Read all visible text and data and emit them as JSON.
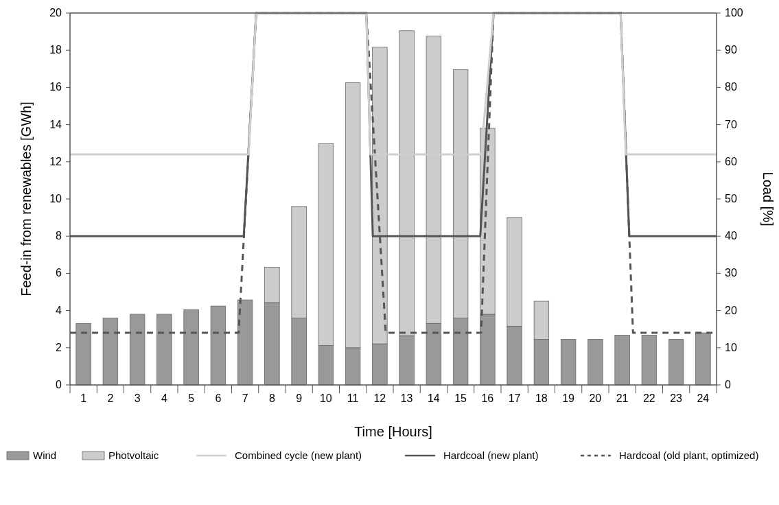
{
  "chart_data": {
    "type": "bar",
    "stacked": true,
    "xlabel": "Time [Hours]",
    "ylabel": "Feed-in from renewables [GWh]",
    "y2label": "Load [%]",
    "x": [
      1,
      2,
      3,
      4,
      5,
      6,
      7,
      8,
      9,
      10,
      11,
      12,
      13,
      14,
      15,
      16,
      17,
      18,
      19,
      20,
      21,
      22,
      23,
      24
    ],
    "xlim": [
      0.5,
      24.5
    ],
    "xticks": [
      {
        "value": 0.5,
        "label": null
      },
      {
        "value": 1,
        "label": "1"
      },
      {
        "value": 1.5,
        "label": null
      },
      {
        "value": 2,
        "label": "2"
      },
      {
        "value": 2.5,
        "label": null
      },
      {
        "value": 3,
        "label": "3"
      },
      {
        "value": 3.5,
        "label": null
      },
      {
        "value": 4,
        "label": "4"
      },
      {
        "value": 4.5,
        "label": null
      },
      {
        "value": 5,
        "label": "5"
      },
      {
        "value": 5.5,
        "label": null
      },
      {
        "value": 6,
        "label": "6"
      },
      {
        "value": 6.5,
        "label": null
      },
      {
        "value": 7,
        "label": "7"
      },
      {
        "value": 7.5,
        "label": null
      },
      {
        "value": 8,
        "label": "8"
      },
      {
        "value": 8.5,
        "label": null
      },
      {
        "value": 9,
        "label": "9"
      },
      {
        "value": 9.5,
        "label": null
      },
      {
        "value": 10,
        "label": "10"
      },
      {
        "value": 10.5,
        "label": null
      },
      {
        "value": 11,
        "label": "11"
      },
      {
        "value": 11.5,
        "label": null
      },
      {
        "value": 12,
        "label": "12"
      },
      {
        "value": 12.5,
        "label": null
      },
      {
        "value": 13,
        "label": "13"
      },
      {
        "value": 13.5,
        "label": null
      },
      {
        "value": 14,
        "label": "14"
      },
      {
        "value": 14.5,
        "label": null
      },
      {
        "value": 15,
        "label": "15"
      },
      {
        "value": 15.5,
        "label": null
      },
      {
        "value": 16,
        "label": "16"
      },
      {
        "value": 16.5,
        "label": null
      },
      {
        "value": 17,
        "label": "17"
      },
      {
        "value": 17.5,
        "label": null
      },
      {
        "value": 18,
        "label": "18"
      },
      {
        "value": 18.5,
        "label": null
      },
      {
        "value": 19,
        "label": "19"
      },
      {
        "value": 19.5,
        "label": null
      },
      {
        "value": 20,
        "label": "20"
      },
      {
        "value": 20.5,
        "label": null
      },
      {
        "value": 21,
        "label": "21"
      },
      {
        "value": 21.5,
        "label": null
      },
      {
        "value": 22,
        "label": "22"
      },
      {
        "value": 22.5,
        "label": null
      },
      {
        "value": 23,
        "label": "23"
      },
      {
        "value": 23.5,
        "label": null
      },
      {
        "value": 24,
        "label": "24"
      },
      {
        "value": 24.5,
        "label": null
      }
    ],
    "ylim": [
      0,
      20
    ],
    "yticks": [
      0,
      2,
      4,
      6,
      8,
      10,
      12,
      14,
      16,
      18,
      20
    ],
    "y2lim": [
      0,
      100
    ],
    "y2ticks": [
      0,
      10,
      20,
      30,
      40,
      50,
      60,
      70,
      80,
      90,
      100
    ],
    "legend": "bottom",
    "series": [
      {
        "name": "Wind",
        "color": "#999999",
        "values": [
          3.3,
          3.6,
          3.8,
          3.8,
          4.05,
          4.24,
          4.57,
          4.43,
          3.6,
          2.12,
          2.0,
          2.21,
          2.65,
          3.31,
          3.6,
          3.8,
          3.16,
          2.45,
          2.45,
          2.45,
          2.68,
          2.68,
          2.45,
          2.8
        ]
      },
      {
        "name": "Photvoltaic",
        "color": "#cccccc",
        "values": [
          null,
          null,
          null,
          null,
          null,
          null,
          null,
          1.9,
          6.0,
          10.85,
          14.25,
          15.95,
          16.4,
          15.45,
          13.35,
          10.0,
          5.85,
          2.05,
          null,
          null,
          null,
          null,
          null,
          null
        ]
      },
      {
        "name": "Combined cycle (new plant)",
        "type": "line",
        "axis": "y2",
        "color": "#cfcfcf",
        "line_style": "solid",
        "x": [
          0.5,
          7.13,
          7.41,
          11.5,
          11.65,
          15.76,
          16.22,
          20.94,
          21.13,
          24.5
        ],
        "values": [
          62,
          62,
          100,
          100,
          62,
          62,
          100,
          100,
          62,
          62
        ]
      },
      {
        "name": "Hardcoal (new plant)",
        "type": "line",
        "axis": "y2",
        "color": "#555555",
        "line_style": "solid",
        "x": [
          0.5,
          6.95,
          7.41,
          11.5,
          11.74,
          15.73,
          16.22,
          20.94,
          21.26,
          24.5
        ],
        "values": [
          40,
          40,
          100,
          100,
          40,
          40,
          100,
          100,
          40,
          40
        ]
      },
      {
        "name": "Hardcoal (old plant, optimized)",
        "type": "line",
        "axis": "y2",
        "color": "#555555",
        "line_style": "dashed",
        "x": [
          0.5,
          6.76,
          7.41,
          11.5,
          12.22,
          15.76,
          16.22,
          20.94,
          21.4,
          24.5
        ],
        "values": [
          14,
          14,
          100,
          100,
          14,
          14,
          100,
          100,
          14,
          14
        ]
      }
    ]
  }
}
